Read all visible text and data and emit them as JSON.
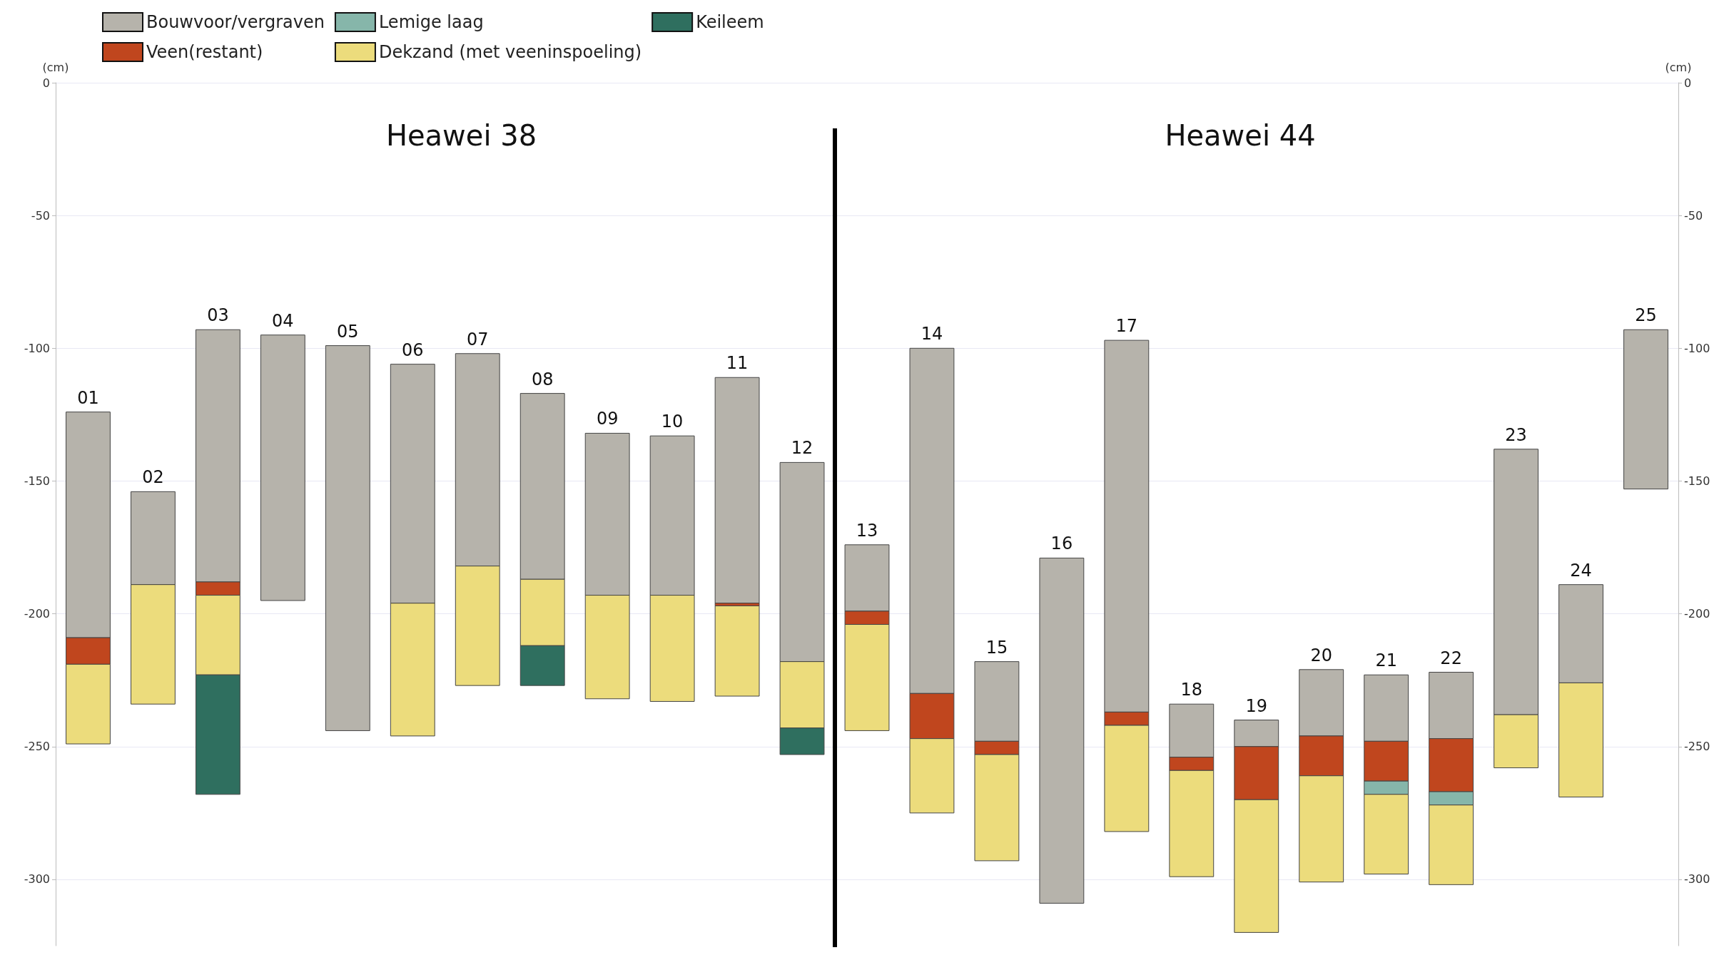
{
  "chart_data": {
    "type": "bar",
    "categories": [
      "01",
      "02",
      "03",
      "04",
      "05",
      "06",
      "07",
      "08",
      "09",
      "10",
      "11",
      "12",
      "13",
      "14",
      "15",
      "16",
      "17",
      "18",
      "19",
      "20",
      "21",
      "22",
      "23",
      "24",
      "25"
    ],
    "series": [
      {
        "name": "Bouwvoor/vergraven",
        "color": "#b6b3ab",
        "base": [
          -124,
          -154,
          -93,
          -95,
          -99,
          -106,
          -102,
          -117,
          -132,
          -133,
          -111,
          -143,
          -174,
          -100,
          -218,
          -179,
          -97,
          -234,
          -240,
          -221,
          -223,
          -222,
          -138,
          -189,
          -93
        ],
        "values": [
          -85,
          -35,
          -95,
          -100,
          -145,
          -90,
          -80,
          -70,
          -61,
          -60,
          -85,
          -75,
          -25,
          -130,
          -30,
          -130,
          -140,
          -20,
          -10,
          -25,
          -25,
          -25,
          -100,
          -37,
          -60
        ]
      },
      {
        "name": "Veen(restant)",
        "color": "#c0461e",
        "base": [
          -209,
          null,
          -188,
          null,
          null,
          null,
          null,
          null,
          null,
          null,
          -196,
          null,
          -199,
          -230,
          -248,
          null,
          -237,
          -254,
          -250,
          -246,
          -248,
          -247,
          null,
          null,
          null
        ],
        "values": [
          -10,
          null,
          -5,
          null,
          null,
          null,
          null,
          null,
          null,
          null,
          -1,
          null,
          -5,
          -17,
          -5,
          null,
          -5,
          -5,
          -20,
          -15,
          -15,
          -20,
          null,
          null,
          null
        ]
      },
      {
        "name": "Lemige laag",
        "color": "#86b6aa",
        "base": [
          null,
          null,
          null,
          null,
          null,
          null,
          null,
          null,
          null,
          null,
          null,
          null,
          null,
          null,
          null,
          null,
          null,
          null,
          null,
          null,
          -263,
          -267,
          null,
          null,
          null
        ],
        "values": [
          null,
          null,
          null,
          null,
          null,
          null,
          null,
          null,
          null,
          null,
          null,
          null,
          null,
          null,
          null,
          null,
          null,
          null,
          null,
          null,
          -5,
          -5,
          null,
          null,
          null
        ]
      },
      {
        "name": "Dekzand (met veeninspoeling)",
        "color": "#ecdc7c",
        "base": [
          -219,
          -189,
          -193,
          null,
          null,
          -196,
          -182,
          -187,
          -193,
          -193,
          -197,
          -218,
          -204,
          -247,
          -253,
          null,
          -242,
          -259,
          -270,
          -261,
          -268,
          -272,
          -238,
          -226,
          null
        ],
        "values": [
          -30,
          -45,
          -30,
          null,
          null,
          -50,
          -45,
          -25,
          -39,
          -40,
          -34,
          -25,
          -40,
          -28,
          -40,
          null,
          -40,
          -40,
          -50,
          -40,
          -30,
          -30,
          -20,
          -43,
          null
        ]
      },
      {
        "name": "Keileem",
        "color": "#2f6f5f",
        "base": [
          null,
          null,
          -223,
          null,
          null,
          null,
          null,
          -212,
          null,
          null,
          null,
          -243,
          null,
          null,
          null,
          null,
          null,
          null,
          null,
          null,
          null,
          null,
          null,
          null,
          null
        ],
        "values": [
          null,
          null,
          -45,
          null,
          null,
          null,
          null,
          -15,
          null,
          null,
          null,
          -10,
          null,
          null,
          null,
          null,
          null,
          null,
          null,
          null,
          null,
          null,
          null,
          null,
          null
        ]
      }
    ],
    "ylabel": "(cm)",
    "y2label": "(cm)",
    "ylim": [
      -325,
      0
    ],
    "yticks": [
      0,
      -50,
      -100,
      -150,
      -200,
      -250,
      -300
    ],
    "y2lim": [
      -325,
      0
    ],
    "y2ticks": [
      0,
      -50,
      -100,
      -150,
      -200,
      -250,
      -300
    ],
    "annotations": [
      "Heawei 38",
      "Heawei 44"
    ],
    "grid": "y",
    "legend": "top left"
  }
}
